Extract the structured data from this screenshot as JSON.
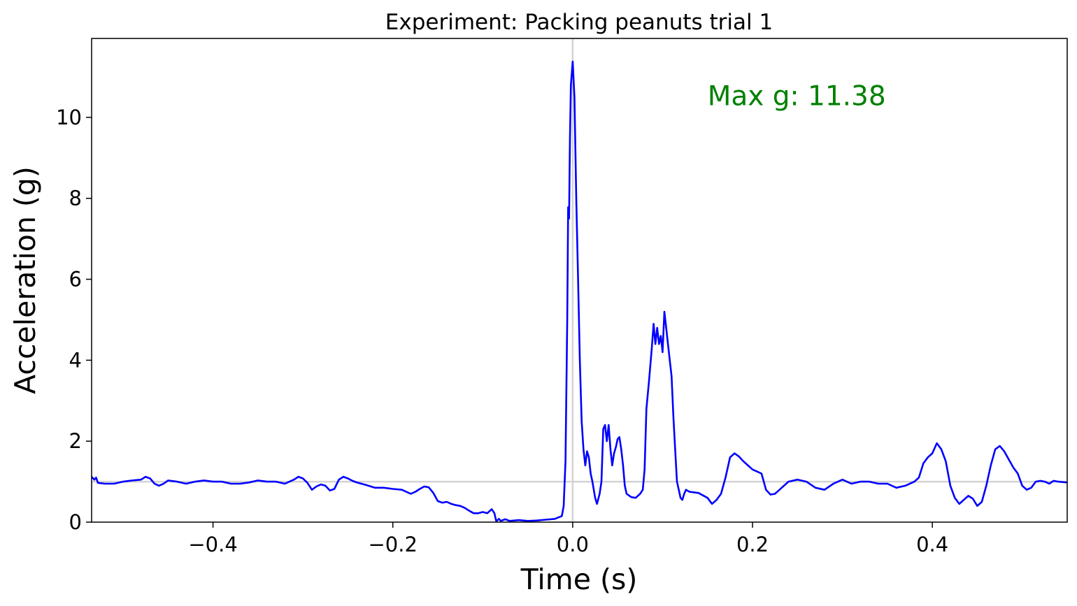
{
  "chart_data": {
    "type": "line",
    "title": "Experiment: Packing peanuts trial 1",
    "xlabel": "Time (s)",
    "ylabel": "Acceleration (g)",
    "xlim": [
      -0.535,
      0.55
    ],
    "ylim": [
      0,
      11.95
    ],
    "xticks": [
      -0.4,
      -0.2,
      0.0,
      0.2,
      0.4
    ],
    "xtick_labels": [
      "−0.4",
      "−0.2",
      "0.0",
      "0.2",
      "0.4"
    ],
    "yticks": [
      0,
      2,
      4,
      6,
      8,
      10
    ],
    "ytick_labels": [
      "0",
      "2",
      "4",
      "6",
      "8",
      "10"
    ],
    "grid": false,
    "reference_lines": {
      "vertical_x": 0.0,
      "horizontal_y": 1.0,
      "color": "#d3d3d3"
    },
    "annotation": {
      "text": "Max g: 11.38",
      "x": 0.15,
      "y": 10.3,
      "color": "#008000"
    },
    "series": [
      {
        "color": "#0000ff",
        "points": [
          [
            -0.535,
            1.12
          ],
          [
            -0.532,
            1.05
          ],
          [
            -0.53,
            1.1
          ],
          [
            -0.528,
            0.97
          ],
          [
            -0.52,
            0.95
          ],
          [
            -0.51,
            0.95
          ],
          [
            -0.5,
            1.0
          ],
          [
            -0.49,
            1.03
          ],
          [
            -0.48,
            1.05
          ],
          [
            -0.475,
            1.12
          ],
          [
            -0.47,
            1.08
          ],
          [
            -0.465,
            0.95
          ],
          [
            -0.46,
            0.9
          ],
          [
            -0.455,
            0.95
          ],
          [
            -0.45,
            1.03
          ],
          [
            -0.44,
            1.0
          ],
          [
            -0.43,
            0.95
          ],
          [
            -0.42,
            1.0
          ],
          [
            -0.41,
            1.03
          ],
          [
            -0.4,
            1.0
          ],
          [
            -0.39,
            1.0
          ],
          [
            -0.38,
            0.95
          ],
          [
            -0.37,
            0.95
          ],
          [
            -0.36,
            0.98
          ],
          [
            -0.35,
            1.03
          ],
          [
            -0.34,
            1.0
          ],
          [
            -0.33,
            1.0
          ],
          [
            -0.32,
            0.95
          ],
          [
            -0.31,
            1.05
          ],
          [
            -0.305,
            1.12
          ],
          [
            -0.3,
            1.08
          ],
          [
            -0.295,
            0.97
          ],
          [
            -0.29,
            0.8
          ],
          [
            -0.285,
            0.88
          ],
          [
            -0.28,
            0.93
          ],
          [
            -0.275,
            0.9
          ],
          [
            -0.27,
            0.78
          ],
          [
            -0.265,
            0.82
          ],
          [
            -0.26,
            1.05
          ],
          [
            -0.255,
            1.12
          ],
          [
            -0.25,
            1.08
          ],
          [
            -0.245,
            1.02
          ],
          [
            -0.24,
            0.98
          ],
          [
            -0.23,
            0.92
          ],
          [
            -0.22,
            0.85
          ],
          [
            -0.21,
            0.85
          ],
          [
            -0.2,
            0.82
          ],
          [
            -0.19,
            0.8
          ],
          [
            -0.18,
            0.7
          ],
          [
            -0.175,
            0.75
          ],
          [
            -0.17,
            0.82
          ],
          [
            -0.165,
            0.88
          ],
          [
            -0.16,
            0.86
          ],
          [
            -0.155,
            0.72
          ],
          [
            -0.15,
            0.52
          ],
          [
            -0.145,
            0.48
          ],
          [
            -0.14,
            0.5
          ],
          [
            -0.135,
            0.45
          ],
          [
            -0.13,
            0.42
          ],
          [
            -0.125,
            0.4
          ],
          [
            -0.12,
            0.35
          ],
          [
            -0.115,
            0.28
          ],
          [
            -0.11,
            0.22
          ],
          [
            -0.105,
            0.22
          ],
          [
            -0.1,
            0.25
          ],
          [
            -0.095,
            0.22
          ],
          [
            -0.09,
            0.32
          ],
          [
            -0.087,
            0.22
          ],
          [
            -0.085,
            0.02
          ],
          [
            -0.082,
            0.08
          ],
          [
            -0.08,
            0.03
          ],
          [
            -0.075,
            0.07
          ],
          [
            -0.07,
            0.03
          ],
          [
            -0.06,
            0.05
          ],
          [
            -0.05,
            0.03
          ],
          [
            -0.04,
            0.04
          ],
          [
            -0.03,
            0.06
          ],
          [
            -0.02,
            0.08
          ],
          [
            -0.012,
            0.15
          ],
          [
            -0.01,
            0.4
          ],
          [
            -0.008,
            1.5
          ],
          [
            -0.006,
            5.0
          ],
          [
            -0.005,
            7.78
          ],
          [
            -0.004,
            7.5
          ],
          [
            -0.003,
            9.5
          ],
          [
            -0.002,
            10.8
          ],
          [
            0.0,
            11.38
          ],
          [
            0.002,
            10.5
          ],
          [
            0.004,
            8.0
          ],
          [
            0.006,
            6.0
          ],
          [
            0.008,
            4.0
          ],
          [
            0.01,
            2.5
          ],
          [
            0.012,
            1.8
          ],
          [
            0.014,
            1.4
          ],
          [
            0.016,
            1.75
          ],
          [
            0.018,
            1.6
          ],
          [
            0.02,
            1.2
          ],
          [
            0.022,
            1.0
          ],
          [
            0.025,
            0.6
          ],
          [
            0.027,
            0.45
          ],
          [
            0.03,
            0.7
          ],
          [
            0.032,
            1.0
          ],
          [
            0.034,
            2.3
          ],
          [
            0.036,
            2.4
          ],
          [
            0.038,
            2.0
          ],
          [
            0.04,
            2.4
          ],
          [
            0.042,
            1.8
          ],
          [
            0.044,
            1.4
          ],
          [
            0.046,
            1.7
          ],
          [
            0.048,
            1.85
          ],
          [
            0.05,
            2.05
          ],
          [
            0.052,
            2.1
          ],
          [
            0.054,
            1.8
          ],
          [
            0.056,
            1.4
          ],
          [
            0.058,
            0.9
          ],
          [
            0.06,
            0.7
          ],
          [
            0.065,
            0.62
          ],
          [
            0.07,
            0.6
          ],
          [
            0.075,
            0.7
          ],
          [
            0.078,
            0.8
          ],
          [
            0.08,
            1.3
          ],
          [
            0.082,
            2.8
          ],
          [
            0.085,
            3.5
          ],
          [
            0.088,
            4.3
          ],
          [
            0.09,
            4.9
          ],
          [
            0.092,
            4.4
          ],
          [
            0.094,
            4.8
          ],
          [
            0.096,
            4.4
          ],
          [
            0.098,
            4.6
          ],
          [
            0.1,
            4.2
          ],
          [
            0.102,
            5.2
          ],
          [
            0.104,
            4.8
          ],
          [
            0.106,
            4.4
          ],
          [
            0.108,
            4.0
          ],
          [
            0.11,
            3.6
          ],
          [
            0.112,
            2.6
          ],
          [
            0.114,
            1.8
          ],
          [
            0.116,
            1.0
          ],
          [
            0.118,
            0.8
          ],
          [
            0.12,
            0.6
          ],
          [
            0.122,
            0.55
          ],
          [
            0.124,
            0.7
          ],
          [
            0.126,
            0.8
          ],
          [
            0.13,
            0.75
          ],
          [
            0.14,
            0.72
          ],
          [
            0.15,
            0.6
          ],
          [
            0.155,
            0.45
          ],
          [
            0.16,
            0.55
          ],
          [
            0.165,
            0.7
          ],
          [
            0.17,
            1.1
          ],
          [
            0.175,
            1.6
          ],
          [
            0.18,
            1.7
          ],
          [
            0.185,
            1.62
          ],
          [
            0.19,
            1.5
          ],
          [
            0.195,
            1.4
          ],
          [
            0.2,
            1.3
          ],
          [
            0.205,
            1.25
          ],
          [
            0.21,
            1.2
          ],
          [
            0.215,
            0.8
          ],
          [
            0.22,
            0.68
          ],
          [
            0.225,
            0.7
          ],
          [
            0.23,
            0.8
          ],
          [
            0.24,
            1.0
          ],
          [
            0.25,
            1.05
          ],
          [
            0.26,
            1.0
          ],
          [
            0.27,
            0.85
          ],
          [
            0.28,
            0.8
          ],
          [
            0.29,
            0.95
          ],
          [
            0.3,
            1.05
          ],
          [
            0.31,
            0.95
          ],
          [
            0.32,
            1.0
          ],
          [
            0.33,
            1.0
          ],
          [
            0.34,
            0.95
          ],
          [
            0.35,
            0.95
          ],
          [
            0.36,
            0.85
          ],
          [
            0.37,
            0.9
          ],
          [
            0.38,
            1.0
          ],
          [
            0.385,
            1.1
          ],
          [
            0.39,
            1.45
          ],
          [
            0.395,
            1.6
          ],
          [
            0.4,
            1.7
          ],
          [
            0.405,
            1.95
          ],
          [
            0.41,
            1.8
          ],
          [
            0.415,
            1.5
          ],
          [
            0.42,
            0.9
          ],
          [
            0.425,
            0.6
          ],
          [
            0.43,
            0.45
          ],
          [
            0.435,
            0.55
          ],
          [
            0.44,
            0.65
          ],
          [
            0.445,
            0.58
          ],
          [
            0.45,
            0.4
          ],
          [
            0.455,
            0.5
          ],
          [
            0.46,
            0.9
          ],
          [
            0.465,
            1.4
          ],
          [
            0.47,
            1.8
          ],
          [
            0.475,
            1.88
          ],
          [
            0.48,
            1.75
          ],
          [
            0.485,
            1.55
          ],
          [
            0.49,
            1.35
          ],
          [
            0.495,
            1.2
          ],
          [
            0.5,
            0.9
          ],
          [
            0.505,
            0.8
          ],
          [
            0.51,
            0.85
          ],
          [
            0.515,
            1.0
          ],
          [
            0.52,
            1.02
          ],
          [
            0.525,
            1.0
          ],
          [
            0.53,
            0.95
          ],
          [
            0.535,
            1.02
          ],
          [
            0.54,
            1.0
          ],
          [
            0.55,
            0.98
          ]
        ]
      }
    ]
  }
}
